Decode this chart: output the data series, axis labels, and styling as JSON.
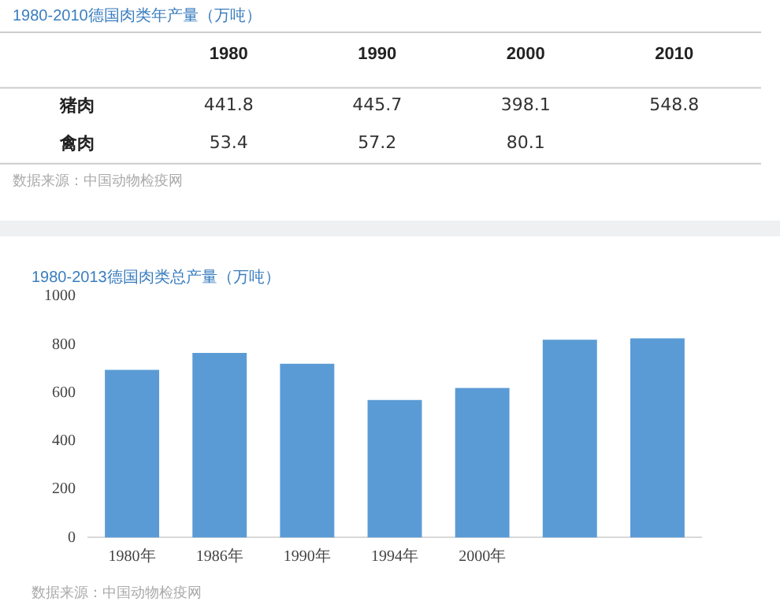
{
  "chart_data": [
    {
      "type": "heatmap",
      "title": "1980-2010德国肉类年产量（万吨）",
      "categories": [
        "1980",
        "1990",
        "2000",
        "2010"
      ],
      "y_categories": [
        "猪肉",
        "禽肉"
      ],
      "cells": [
        [
          441.8,
          445.7,
          398.1,
          548.8
        ],
        [
          53.4,
          57.2,
          80.1,
          null
        ]
      ],
      "data_labels": true,
      "annotations": [
        "数据来源：中国动物检疫网"
      ]
    },
    {
      "type": "bar",
      "title": "1980-2013德国肉类总产量（万吨）",
      "categories": [
        "1980年",
        "1986年",
        "1990年",
        "1994年",
        "2000年",
        null,
        null
      ],
      "values": [
        695,
        765,
        720,
        570,
        620,
        820,
        825
      ],
      "color": "#5b9bd5",
      "ylim": [
        0,
        1000
      ],
      "yticks": [
        0,
        200,
        400,
        600,
        800,
        1000
      ],
      "grid": false,
      "legend": false,
      "annotations": [
        "数据来源：中国动物检疫网"
      ]
    }
  ]
}
